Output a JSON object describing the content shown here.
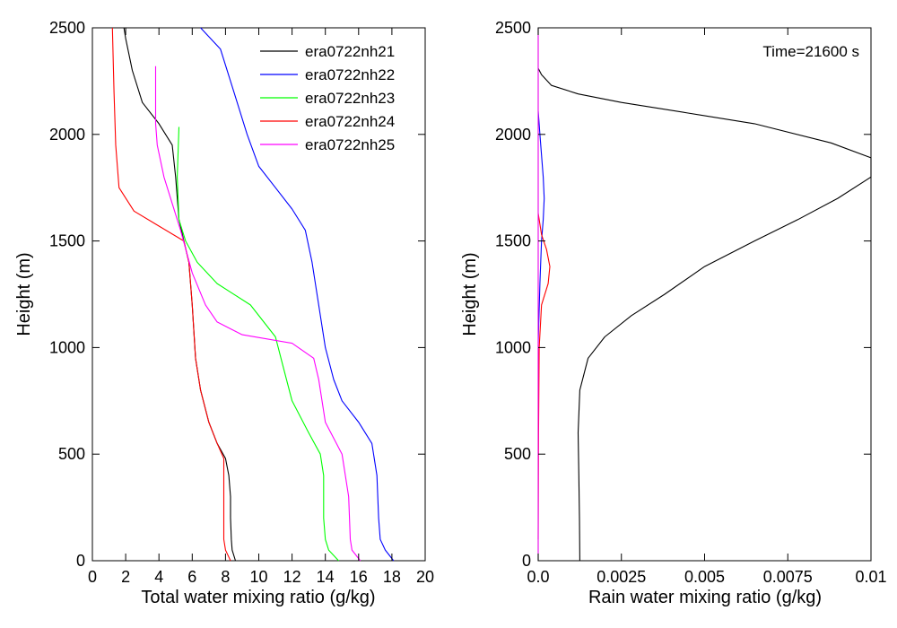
{
  "chart_data": [
    {
      "type": "line",
      "xlabel": "Total water mixing ratio (g/kg)",
      "ylabel": "Height (m)",
      "xlim": [
        0,
        20
      ],
      "ylim": [
        0,
        2500
      ],
      "xticks": [
        0,
        2,
        4,
        6,
        8,
        10,
        12,
        14,
        16,
        18,
        20
      ],
      "xtick_labels": [
        "0",
        "2",
        "4",
        "6",
        "8",
        "10",
        "12",
        "14",
        "16",
        "18",
        "20"
      ],
      "yticks": [
        0,
        500,
        1000,
        1500,
        2000,
        2500
      ],
      "ytick_labels": [
        "0",
        "500",
        "1000",
        "1500",
        "2000",
        "2500"
      ],
      "grid": false,
      "legend": "top-right",
      "series": [
        {
          "name": "era0722nh21",
          "color": "#000000",
          "points": [
            [
              8.6,
              0
            ],
            [
              8.4,
              50
            ],
            [
              8.35,
              100
            ],
            [
              8.3,
              200
            ],
            [
              8.3,
              300
            ],
            [
              8.2,
              400
            ],
            [
              8.0,
              480
            ],
            [
              7.5,
              550
            ],
            [
              7.0,
              650
            ],
            [
              6.5,
              800
            ],
            [
              6.2,
              950
            ],
            [
              6.0,
              1200
            ],
            [
              5.8,
              1400
            ],
            [
              5.5,
              1500
            ],
            [
              5.2,
              1600
            ],
            [
              5.0,
              1800
            ],
            [
              4.8,
              1950
            ],
            [
              4.0,
              2050
            ],
            [
              3.0,
              2150
            ],
            [
              2.4,
              2300
            ],
            [
              2.0,
              2450
            ],
            [
              1.9,
              2500
            ]
          ]
        },
        {
          "name": "era0722nh22",
          "color": "#0000ff",
          "points": [
            [
              18.1,
              0
            ],
            [
              17.6,
              50
            ],
            [
              17.3,
              100
            ],
            [
              17.2,
              200
            ],
            [
              17.1,
              400
            ],
            [
              16.8,
              550
            ],
            [
              16.0,
              650
            ],
            [
              15.0,
              750
            ],
            [
              14.5,
              850
            ],
            [
              14.0,
              1000
            ],
            [
              13.6,
              1200
            ],
            [
              13.2,
              1400
            ],
            [
              12.8,
              1550
            ],
            [
              12.0,
              1650
            ],
            [
              11.0,
              1750
            ],
            [
              10.0,
              1850
            ],
            [
              9.3,
              2000
            ],
            [
              8.5,
              2200
            ],
            [
              7.7,
              2400
            ],
            [
              6.5,
              2500
            ]
          ]
        },
        {
          "name": "era0722nh23",
          "color": "#00ff00",
          "points": [
            [
              14.8,
              0
            ],
            [
              14.2,
              50
            ],
            [
              14.0,
              100
            ],
            [
              13.9,
              200
            ],
            [
              13.9,
              400
            ],
            [
              13.7,
              500
            ],
            [
              13.0,
              600
            ],
            [
              12.0,
              750
            ],
            [
              11.5,
              900
            ],
            [
              11.0,
              1050
            ],
            [
              9.5,
              1200
            ],
            [
              7.5,
              1300
            ],
            [
              6.3,
              1400
            ],
            [
              5.6,
              1500
            ],
            [
              5.2,
              1600
            ],
            [
              5.1,
              1800
            ],
            [
              5.2,
              2035
            ]
          ]
        },
        {
          "name": "era0722nh24",
          "color": "#ff0000",
          "points": [
            [
              8.3,
              0
            ],
            [
              8.0,
              50
            ],
            [
              7.9,
              100
            ],
            [
              7.9,
              300
            ],
            [
              7.9,
              480
            ],
            [
              7.5,
              550
            ],
            [
              7.0,
              650
            ],
            [
              6.5,
              800
            ],
            [
              6.2,
              950
            ],
            [
              6.0,
              1200
            ],
            [
              5.8,
              1400
            ],
            [
              5.5,
              1500
            ],
            [
              4.0,
              1570
            ],
            [
              2.5,
              1640
            ],
            [
              1.6,
              1750
            ],
            [
              1.4,
              1950
            ],
            [
              1.3,
              2200
            ],
            [
              1.2,
              2500
            ]
          ]
        },
        {
          "name": "era0722nh25",
          "color": "#ff00ff",
          "points": [
            [
              16.1,
              0
            ],
            [
              15.6,
              50
            ],
            [
              15.5,
              100
            ],
            [
              15.4,
              300
            ],
            [
              15.0,
              500
            ],
            [
              14.0,
              650
            ],
            [
              13.6,
              850
            ],
            [
              13.3,
              950
            ],
            [
              12.0,
              1020
            ],
            [
              9.0,
              1060
            ],
            [
              7.5,
              1120
            ],
            [
              6.8,
              1200
            ],
            [
              6.0,
              1350
            ],
            [
              5.3,
              1550
            ],
            [
              4.3,
              1800
            ],
            [
              3.9,
              1950
            ],
            [
              3.8,
              2050
            ],
            [
              3.8,
              2320
            ]
          ]
        }
      ]
    },
    {
      "type": "line",
      "xlabel": "Rain water mixing ratio (g/kg)",
      "ylabel": "Height (m)",
      "xlim": [
        0,
        0.01
      ],
      "ylim": [
        0,
        2500
      ],
      "xticks": [
        0,
        0.0025,
        0.005,
        0.0075,
        0.01
      ],
      "xtick_labels": [
        "0.0",
        "0.0025",
        "0.005",
        "0.0075",
        "0.01"
      ],
      "yticks": [
        0,
        500,
        1000,
        1500,
        2000,
        2500
      ],
      "ytick_labels": [
        "0",
        "500",
        "1000",
        "1500",
        "2000",
        "2500"
      ],
      "grid": false,
      "annotation": "Time=21600 s",
      "series": [
        {
          "name": "era0722nh21",
          "color": "#000000",
          "points": [
            [
              0.00125,
              0
            ],
            [
              0.00124,
              200
            ],
            [
              0.00122,
              400
            ],
            [
              0.0012,
              600
            ],
            [
              0.00125,
              800
            ],
            [
              0.0015,
              950
            ],
            [
              0.002,
              1050
            ],
            [
              0.0028,
              1150
            ],
            [
              0.0038,
              1250
            ],
            [
              0.005,
              1380
            ],
            [
              0.0065,
              1500
            ],
            [
              0.0078,
              1600
            ],
            [
              0.009,
              1700
            ],
            [
              0.01,
              1800
            ],
            [
              0.01,
              1890
            ],
            [
              0.0088,
              1960
            ],
            [
              0.0065,
              2050
            ],
            [
              0.0045,
              2100
            ],
            [
              0.0025,
              2150
            ],
            [
              0.0012,
              2190
            ],
            [
              0.0004,
              2230
            ],
            [
              0.0001,
              2280
            ],
            [
              0.0,
              2310
            ]
          ]
        },
        {
          "name": "era0722nh22",
          "color": "#0000ff",
          "points": [
            [
              0.0,
              1020
            ],
            [
              5e-05,
              1300
            ],
            [
              0.0001,
              1500
            ],
            [
              0.00015,
              1600
            ],
            [
              0.00018,
              1700
            ],
            [
              0.00015,
              1800
            ],
            [
              5e-05,
              2000
            ],
            [
              0.0,
              2110
            ]
          ]
        },
        {
          "name": "era0722nh23",
          "color": "#00ff00",
          "points": [
            [
              0.0,
              0
            ],
            [
              0.0,
              2500
            ]
          ]
        },
        {
          "name": "era0722nh24",
          "color": "#ff0000",
          "points": [
            [
              0.0,
              100
            ],
            [
              1e-05,
              600
            ],
            [
              3e-05,
              1000
            ],
            [
              0.0001,
              1200
            ],
            [
              0.0003,
              1300
            ],
            [
              0.00035,
              1380
            ],
            [
              0.00025,
              1460
            ],
            [
              0.0001,
              1530
            ],
            [
              0.0,
              1630
            ]
          ]
        },
        {
          "name": "era0722nh25",
          "color": "#ff00ff",
          "points": [
            [
              0.0,
              0
            ],
            [
              0.0,
              2500
            ]
          ]
        }
      ]
    }
  ]
}
